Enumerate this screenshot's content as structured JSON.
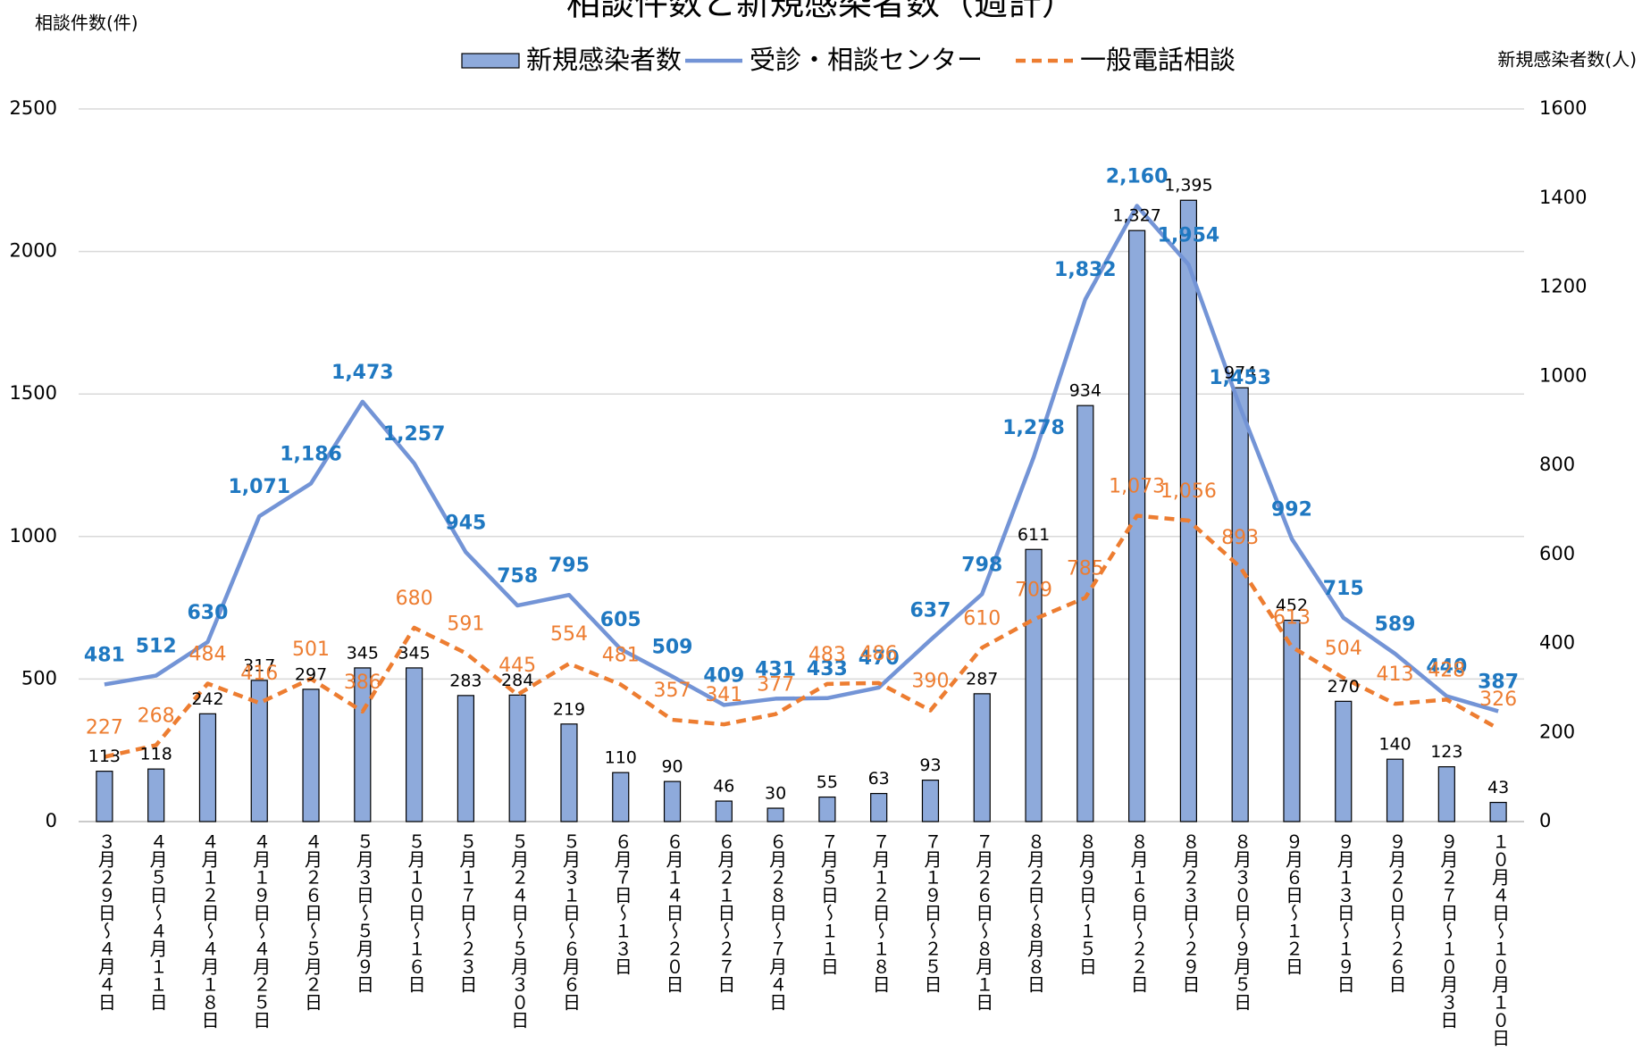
{
  "chart_data": {
    "type": "bar",
    "title": "相談件数と新規感染者数（週計）",
    "y_label": "相談件数(件)",
    "y2_label": "新規感染者数(人)",
    "categories": [
      "３月２９日～４月４日",
      "４月５日～４月１１日",
      "４月１２日～４月１８日",
      "４月１９日～４月２５日",
      "４月２６日～５月２日",
      "５月３日～５月９日",
      "５月１０日～１６日",
      "５月１７日～２３日",
      "５月２４日～５月３０日",
      "５月３１日～６月６日",
      "６月７日～１３日",
      "６月１４日～２０日",
      "６月２１日～２７日",
      "６月２８日～７月４日",
      "７月５日～１１日",
      "７月１２日～１８日",
      "７月１９日～２５日",
      "７月２６日～８月１日",
      "８月２日～８月８日",
      "８月９日～１５日",
      "８月１６日～２２日",
      "８月２３日～２９日",
      "８月３０日～９月５日",
      "９月６日～１２日",
      "９月１３日～１９日",
      "９月２０日～２６日",
      "９月２７日～１０月３日",
      "１０月４日～１０月１０日"
    ],
    "series": [
      {
        "name": "新規感染者数",
        "type": "bar",
        "axis": "y2",
        "color": "#8eaadb",
        "label_color": "#000000",
        "values": [
          113,
          118,
          242,
          317,
          297,
          345,
          345,
          283,
          284,
          219,
          110,
          90,
          46,
          30,
          55,
          63,
          93,
          287,
          611,
          934,
          1327,
          1395,
          974,
          452,
          270,
          140,
          123,
          43
        ],
        "value_labels": [
          "113",
          "118",
          "242",
          "317",
          "297",
          "345",
          "345",
          "283",
          "284",
          "219",
          "110",
          "90",
          "46",
          "30",
          "55",
          "63",
          "93",
          "287",
          "611",
          "934",
          "1,327",
          "1,395",
          "974",
          "452",
          "270",
          "140",
          "123",
          "43"
        ]
      },
      {
        "name": "受診・相談センター",
        "type": "line",
        "axis": "y",
        "color": "#7394d6",
        "label_color": "#1f78c1",
        "dash": false,
        "values": [
          481,
          512,
          630,
          1071,
          1186,
          1473,
          1257,
          945,
          758,
          795,
          605,
          509,
          409,
          431,
          433,
          470,
          637,
          798,
          1278,
          1832,
          2160,
          1954,
          1453,
          992,
          715,
          589,
          440,
          387
        ],
        "value_labels": [
          "481",
          "512",
          "630",
          "1,071",
          "1,186",
          "1,473",
          "1,257",
          "945",
          "758",
          "795",
          "605",
          "509",
          "409",
          "431",
          "433",
          "470",
          "637",
          "798",
          "1,278",
          "1,832",
          "2,160",
          "1,954",
          "1,453",
          "992",
          "715",
          "589",
          "440",
          "387"
        ]
      },
      {
        "name": "一般電話相談",
        "type": "line",
        "axis": "y",
        "color": "#ed7d31",
        "label_color": "#ed7d31",
        "dash": true,
        "values": [
          227,
          268,
          484,
          416,
          501,
          386,
          680,
          591,
          445,
          554,
          481,
          357,
          341,
          377,
          483,
          486,
          390,
          610,
          709,
          785,
          1073,
          1056,
          893,
          613,
          504,
          413,
          428,
          326
        ],
        "value_labels": [
          "227",
          "268",
          "484",
          "416",
          "501",
          "386",
          "680",
          "591",
          "445",
          "554",
          "481",
          "357",
          "341",
          "377",
          "483",
          "486",
          "390",
          "610",
          "709",
          "785",
          "1,073",
          "1,056",
          "893",
          "613",
          "504",
          "413",
          "428",
          "326"
        ]
      }
    ],
    "ylim": [
      0,
      2500
    ],
    "yticks": [
      0,
      500,
      1000,
      1500,
      2000,
      2500
    ],
    "y2lim": [
      0,
      1600
    ],
    "y2ticks": [
      0,
      200,
      400,
      600,
      800,
      1000,
      1200,
      1400,
      1600
    ],
    "grid": true
  }
}
